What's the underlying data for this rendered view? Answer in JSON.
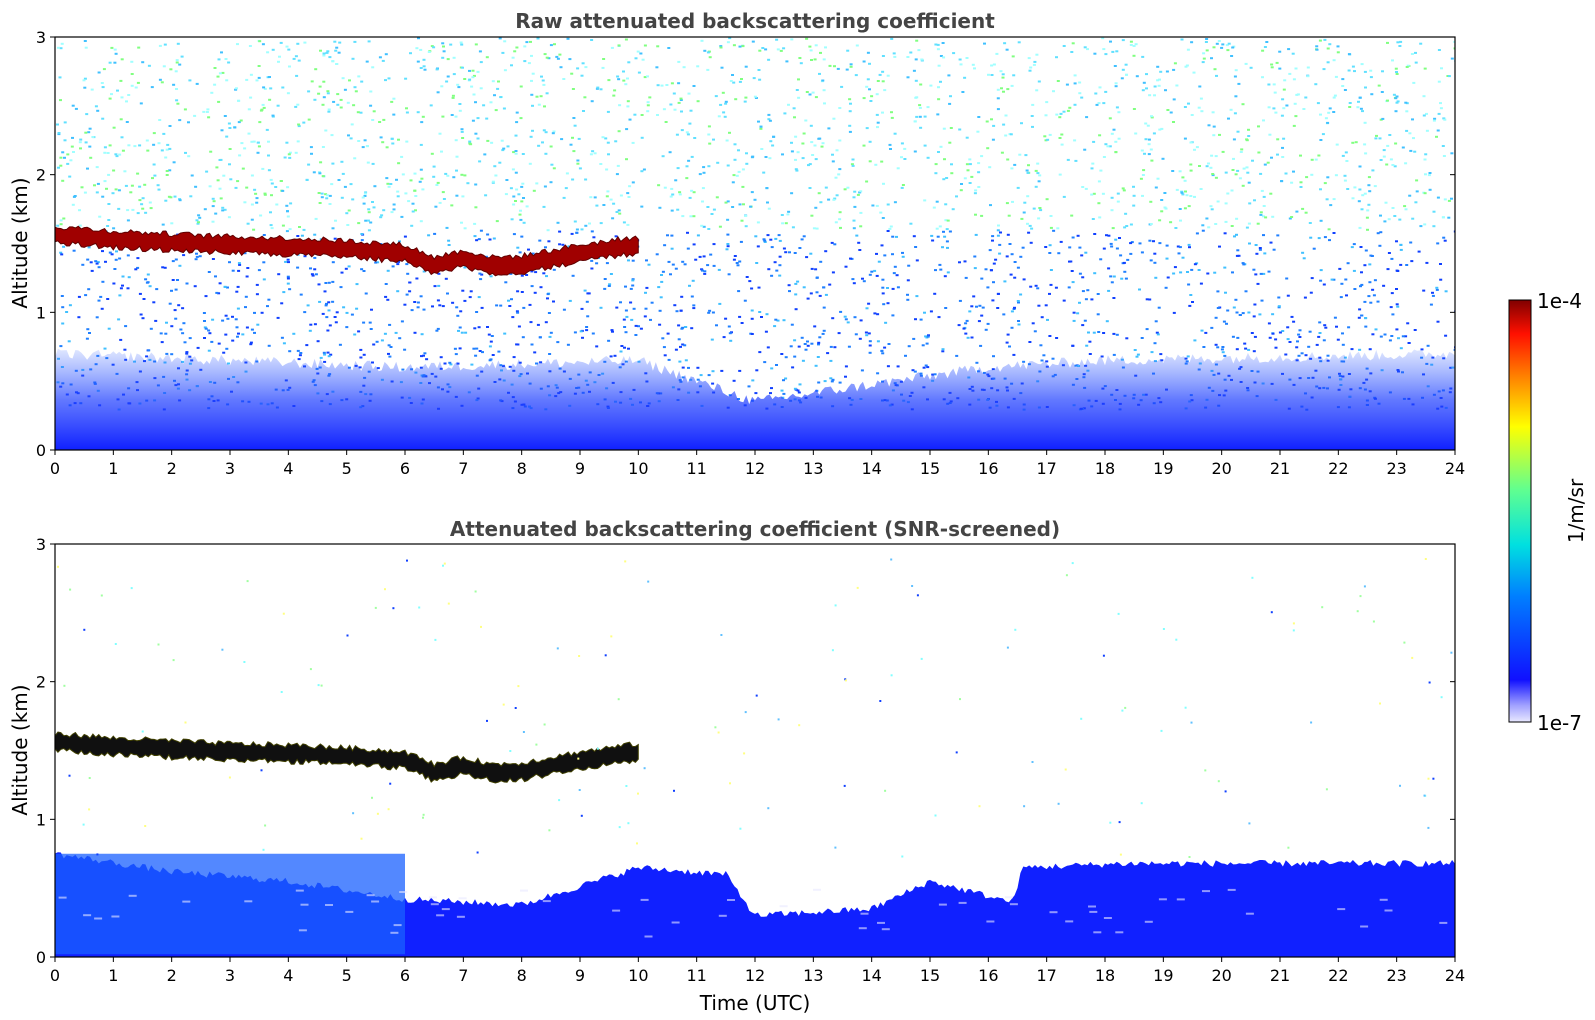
{
  "chart_data": [
    {
      "type": "heatmap",
      "title": "Raw attenuated backscattering coefficient",
      "xlabel": "",
      "ylabel": "Altitude (km)",
      "xlim": [
        0,
        24
      ],
      "ylim": [
        0,
        3
      ],
      "xticks": [
        "0",
        "1",
        "2",
        "3",
        "4",
        "5",
        "6",
        "7",
        "8",
        "9",
        "10",
        "11",
        "12",
        "13",
        "14",
        "15",
        "16",
        "17",
        "18",
        "19",
        "20",
        "21",
        "22",
        "23",
        "24"
      ],
      "yticks": [
        "0",
        "1",
        "2",
        "3"
      ],
      "cloud_layer": [
        {
          "t": 0.0,
          "alt": 1.57
        },
        {
          "t": 0.5,
          "alt": 1.56
        },
        {
          "t": 1.0,
          "alt": 1.54
        },
        {
          "t": 2.0,
          "alt": 1.52
        },
        {
          "t": 3.0,
          "alt": 1.5
        },
        {
          "t": 4.0,
          "alt": 1.49
        },
        {
          "t": 5.0,
          "alt": 1.47
        },
        {
          "t": 6.0,
          "alt": 1.44
        },
        {
          "t": 6.5,
          "alt": 1.35
        },
        {
          "t": 7.0,
          "alt": 1.4
        },
        {
          "t": 7.5,
          "alt": 1.35
        },
        {
          "t": 8.0,
          "alt": 1.36
        },
        {
          "t": 8.5,
          "alt": 1.4
        },
        {
          "t": 9.0,
          "alt": 1.44
        },
        {
          "t": 9.5,
          "alt": 1.47
        },
        {
          "t": 10.0,
          "alt": 1.5
        }
      ],
      "boundary_layer_top": [
        {
          "t": 0,
          "alt": 0.7
        },
        {
          "t": 6,
          "alt": 0.6
        },
        {
          "t": 10,
          "alt": 0.65
        },
        {
          "t": 12,
          "alt": 0.35
        },
        {
          "t": 16,
          "alt": 0.6
        },
        {
          "t": 18,
          "alt": 0.65
        },
        {
          "t": 24,
          "alt": 0.7
        }
      ]
    },
    {
      "type": "heatmap",
      "title": "Attenuated backscattering coefficient (SNR-screened)",
      "xlabel": "Time (UTC)",
      "ylabel": "Altitude (km)",
      "xlim": [
        0,
        24
      ],
      "ylim": [
        0,
        3
      ],
      "xticks": [
        "0",
        "1",
        "2",
        "3",
        "4",
        "5",
        "6",
        "7",
        "8",
        "9",
        "10",
        "11",
        "12",
        "13",
        "14",
        "15",
        "16",
        "17",
        "18",
        "19",
        "20",
        "21",
        "22",
        "23",
        "24"
      ],
      "yticks": [
        "0",
        "1",
        "2",
        "3"
      ],
      "boundary_layer_top": [
        {
          "t": 0,
          "alt": 0.75
        },
        {
          "t": 2,
          "alt": 0.62
        },
        {
          "t": 4,
          "alt": 0.55
        },
        {
          "t": 6,
          "alt": 0.42
        },
        {
          "t": 8,
          "alt": 0.38
        },
        {
          "t": 10,
          "alt": 0.65
        },
        {
          "t": 11.5,
          "alt": 0.6
        },
        {
          "t": 12,
          "alt": 0.3
        },
        {
          "t": 14,
          "alt": 0.35
        },
        {
          "t": 15,
          "alt": 0.55
        },
        {
          "t": 16.4,
          "alt": 0.4
        },
        {
          "t": 16.6,
          "alt": 0.65
        },
        {
          "t": 18.4,
          "alt": 0.68
        },
        {
          "t": 24,
          "alt": 0.68
        }
      ]
    }
  ],
  "colorbar": {
    "max_label": "1e-4",
    "min_label": "1e-7",
    "label": "1/m/sr",
    "scale": "log",
    "range": [
      1e-07,
      0.0001
    ],
    "colormap": "jet"
  }
}
